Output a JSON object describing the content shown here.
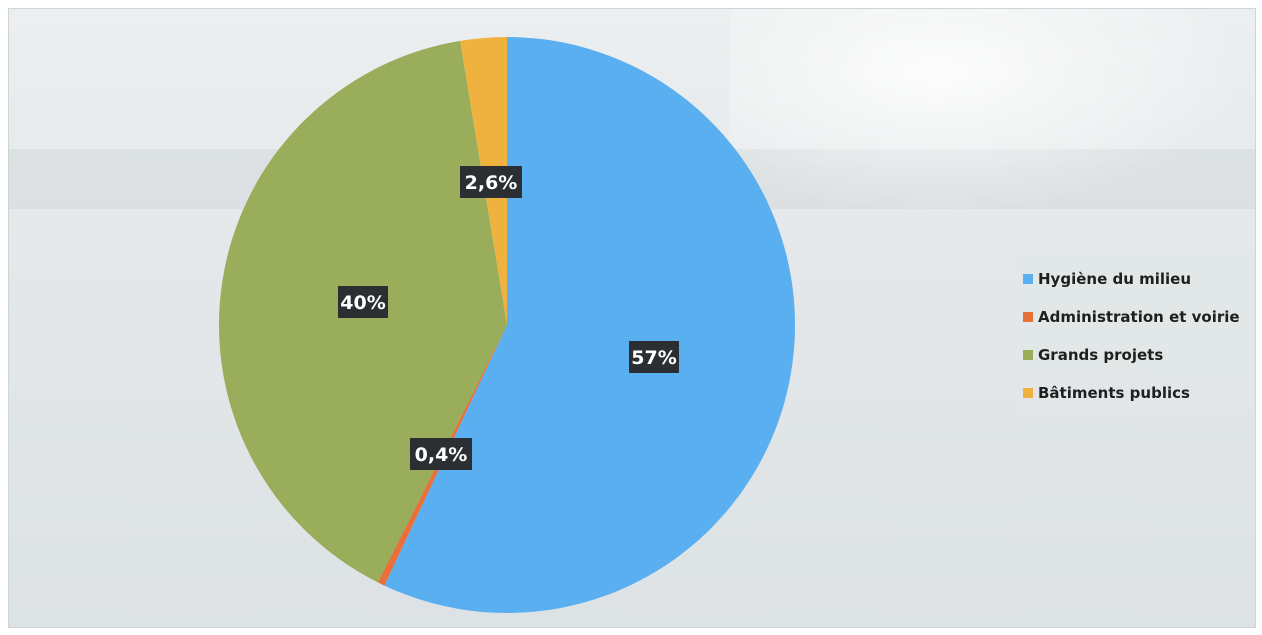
{
  "chart_data": {
    "type": "pie",
    "title": "",
    "start_angle_deg": 0,
    "direction": "clockwise",
    "slices": [
      {
        "label": "Hygiène du milieu",
        "value": 57.0,
        "data_label": "57%",
        "color": "#5aaff0"
      },
      {
        "label": "Administration et voirie",
        "value": 0.4,
        "data_label": "0,4%",
        "color": "#e8703a"
      },
      {
        "label": "Grands projets",
        "value": 40.0,
        "data_label": "40%",
        "color": "#99ad5a"
      },
      {
        "label": "Bâtiments publics",
        "value": 2.6,
        "data_label": "2,6%",
        "color": "#f0b23e"
      }
    ],
    "legend": {
      "position": "right",
      "entries": [
        "Hygiène du milieu",
        "Administration et voirie",
        "Grands projets",
        "Bâtiments publics"
      ]
    }
  },
  "style": {
    "label_box_color": "#2b2f33",
    "label_text_color": "#ffffff"
  }
}
